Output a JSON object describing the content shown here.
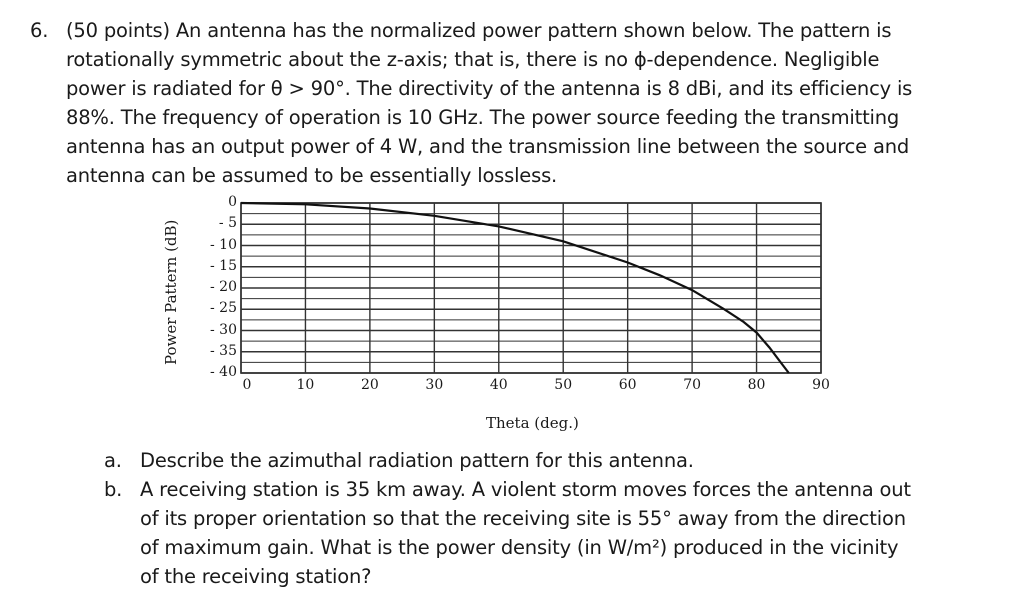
{
  "problem": {
    "number": "6.",
    "lines": [
      "(50 points) An antenna has the normalized power pattern shown below. The pattern is",
      "rotationally symmetric about the z-axis; that is, there is no ϕ-dependence. Negligible",
      "power is radiated for θ > 90°.  The directivity of the antenna is 8 dBi, and its efficiency is",
      "88%. The frequency of operation is 10 GHz. The power source feeding the transmitting",
      "antenna has an output power of 4 W, and the transmission line between the source and",
      "antenna can be assumed to be essentially lossless."
    ]
  },
  "chart_data": {
    "type": "line",
    "xlabel": "Theta (deg.)",
    "ylabel": "Power Pattern (dB)",
    "x_ticks": [
      "0",
      "10",
      "20",
      "30",
      "40",
      "50",
      "60",
      "70",
      "80",
      "90"
    ],
    "y_ticks": [
      "0",
      "- 5",
      "- 10",
      "- 15",
      "- 20",
      "- 25",
      "- 30",
      "- 35",
      "- 40"
    ],
    "xlim": [
      0,
      90
    ],
    "ylim": [
      -40,
      0
    ],
    "grid": true,
    "series": [
      {
        "x": [
          0,
          10,
          20,
          30,
          40,
          50,
          60,
          65,
          70,
          75,
          78,
          80,
          82,
          84,
          85
        ],
        "y": [
          0,
          -0.3,
          -1.3,
          -3,
          -5.5,
          -9,
          -14,
          -17,
          -20.5,
          -25,
          -28,
          -30.5,
          -34,
          -38,
          -40
        ]
      }
    ]
  },
  "parts": [
    {
      "letter": "a.",
      "lines": [
        "Describe the azimuthal radiation pattern for this antenna."
      ]
    },
    {
      "letter": "b.",
      "lines": [
        "A receiving station is 35 km away.  A violent storm moves forces the antenna out",
        "of its proper orientation so that the receiving site is 55° away from the direction",
        "of maximum gain. What is the power density (in W/m²) produced in the vicinity",
        "of the receiving station?"
      ]
    }
  ]
}
